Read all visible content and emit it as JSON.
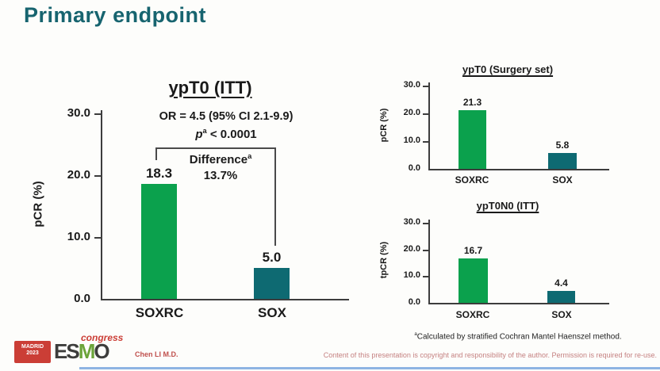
{
  "slide": {
    "title": "Primary endpoint",
    "footnote_sup": "a",
    "footnote": "Calculated by stratified Cochran Mantel Haenszel method.",
    "author": "Chen LI M.D.",
    "copyright": "Content of this presentation is copyright and responsibility of the author. Permission is required for re-use."
  },
  "logo": {
    "city": "MADRID",
    "year": "2023",
    "org_e": "ES",
    "org_m": "M",
    "org_o": "O",
    "suffix": "congress"
  },
  "colors": {
    "heading": "#17646f",
    "soxrc": "#0ba14d",
    "sox": "#0e6a72",
    "author_red": "#c0504d",
    "copyright_red": "#c58181",
    "logo_red": "#cb3e36",
    "logo_green": "#6ba43a",
    "footer_blue": "#8eb4e3"
  },
  "chart_data": [
    {
      "type": "bar",
      "title": "ypT0 (ITT)",
      "categories": [
        "SOXRC",
        "SOX"
      ],
      "values": [
        18.3,
        5.0
      ],
      "value_labels": [
        "18.3",
        "5.0"
      ],
      "xlabel": "",
      "ylabel": "pCR (%)",
      "ylim": [
        0,
        30
      ],
      "yticks": [
        "30.0",
        "20.0",
        "10.0",
        "0.0"
      ],
      "grid": "off",
      "annotations": {
        "or_text": "OR = 4.5 (95% CI 2.1-9.9)",
        "p_prefix": "p",
        "p_sup": "a",
        "p_rest": " < 0.0001",
        "diff_label": "Difference",
        "diff_sup": "a",
        "diff_value": "13.7%"
      }
    },
    {
      "type": "bar",
      "title": "ypT0 (Surgery set)",
      "categories": [
        "SOXRC",
        "SOX"
      ],
      "values": [
        21.3,
        5.8
      ],
      "value_labels": [
        "21.3",
        "5.8"
      ],
      "xlabel": "",
      "ylabel": "pCR (%)",
      "ylim": [
        0,
        30
      ],
      "yticks": [
        "30.0",
        "20.0",
        "10.0",
        "0.0"
      ],
      "grid": "off"
    },
    {
      "type": "bar",
      "title": "ypT0N0 (ITT)",
      "categories": [
        "SOXRC",
        "SOX"
      ],
      "values": [
        16.7,
        4.4
      ],
      "value_labels": [
        "16.7",
        "4.4"
      ],
      "xlabel": "",
      "ylabel": "tpCR (%)",
      "ylim": [
        0,
        30
      ],
      "yticks": [
        "30.0",
        "20.0",
        "10.0",
        "0.0"
      ],
      "grid": "off"
    }
  ]
}
